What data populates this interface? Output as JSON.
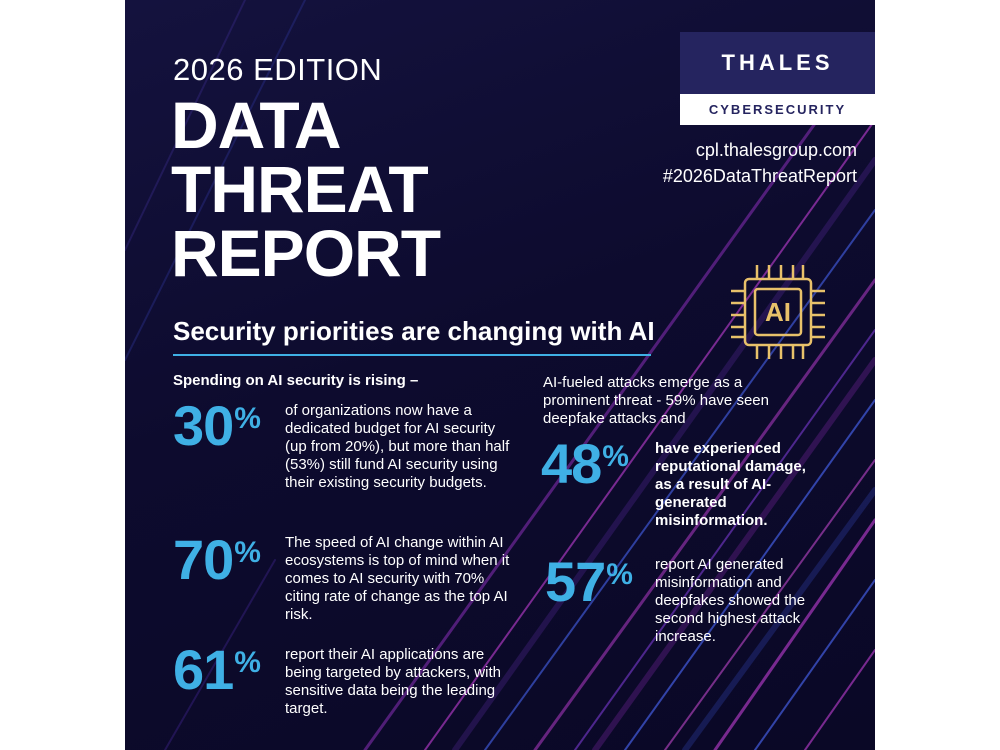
{
  "report": {
    "edition": "2026 EDITION",
    "title_lines": [
      "DATA",
      "THREAT",
      "REPORT"
    ],
    "url": "cpl.thalesgroup.com",
    "hashtag": "#2026DataThreatReport"
  },
  "logo": {
    "brand": "THALES",
    "sub": "CYBERSECURITY"
  },
  "chip": {
    "label": "AI"
  },
  "section": {
    "headline": "Security priorities are changing with AI",
    "subhead": "Spending on AI security is rising –",
    "right_intro": "AI-fueled attacks emerge as a prominent threat - 59% have seen deepfake attacks and"
  },
  "stats": [
    {
      "value": "30",
      "unit": "%",
      "text": "of organizations now have a dedicated budget for AI security (up from 20%), but more than half (53%) still fund AI security using their existing security budgets."
    },
    {
      "value": "70",
      "unit": "%",
      "text": "The speed of AI change within AI ecosystems is top of mind when it comes to AI security with 70% citing rate of change as the top AI risk."
    },
    {
      "value": "61",
      "unit": "%",
      "text": "report their AI applications are being targeted by attackers, with sensitive data being the leading target."
    },
    {
      "value": "48",
      "unit": "%",
      "text": "have experienced reputational damage, as a result of AI-generated misinformation."
    },
    {
      "value": "57",
      "unit": "%",
      "text": "report AI generated misinformation and deepfakes showed the second highest attack increase."
    }
  ],
  "colors": {
    "background": "#0d0b2e",
    "accent": "#3fb0e5",
    "logo_bg": "#25245f",
    "streak_magenta": "#c23fd6",
    "streak_blue": "#4d6bff"
  }
}
